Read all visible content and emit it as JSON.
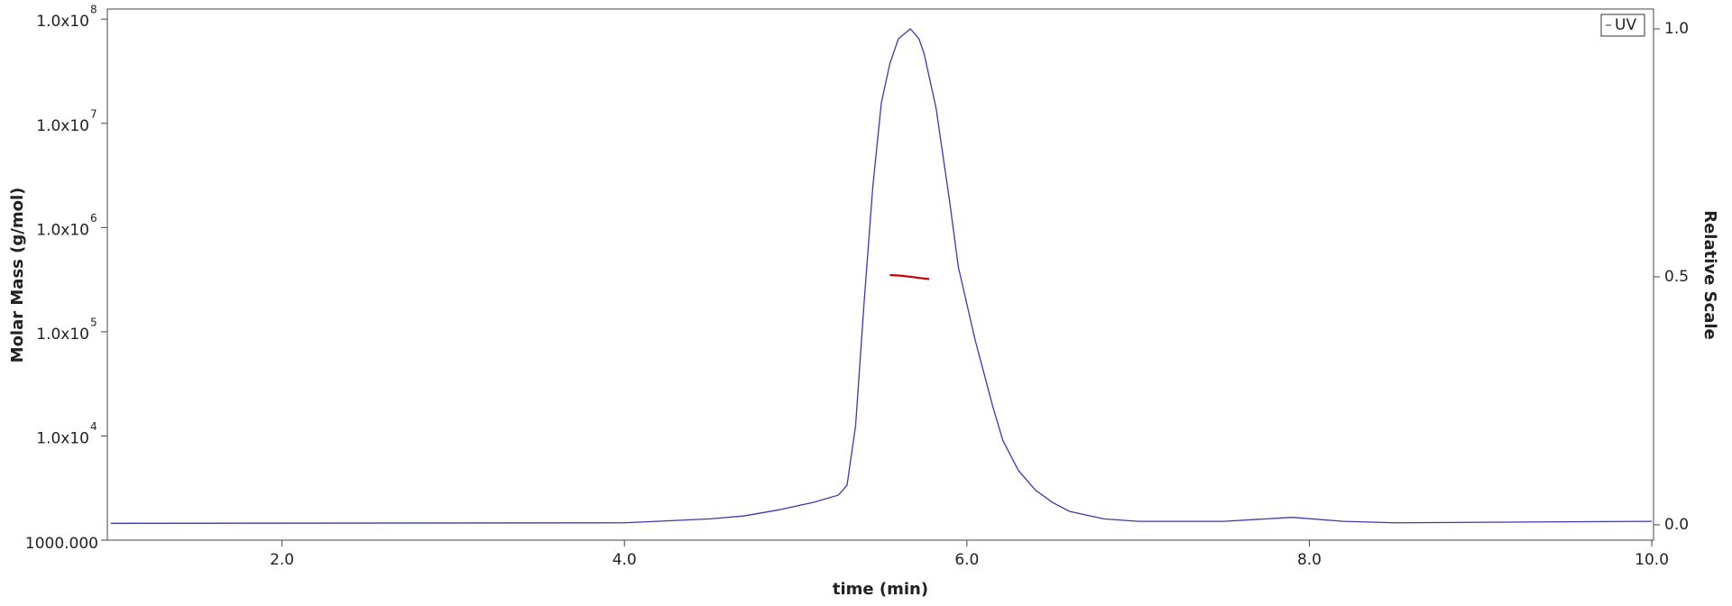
{
  "chart_data": {
    "type": "line",
    "xlabel": "time (min)",
    "ylabel": "Molar Mass (g/mol)",
    "y2label": "Relative Scale",
    "xlim": [
      0.98,
      10.01
    ],
    "xticks": [
      {
        "value": 2,
        "label": "2.0"
      },
      {
        "value": 4,
        "label": "4.0"
      },
      {
        "value": 6,
        "label": "6.0"
      },
      {
        "value": 8,
        "label": "8.0"
      },
      {
        "value": 10,
        "label": "10.0"
      }
    ],
    "ylim": [
      1000,
      125000000
    ],
    "yscale": "log",
    "yticks": [
      {
        "value": 1000,
        "label": "1000.000"
      },
      {
        "value": 10000,
        "label": "1.0x10",
        "exponent": "4"
      },
      {
        "value": 100000,
        "label": "1.0x10",
        "exponent": "5"
      },
      {
        "value": 1000000,
        "label": "1.0x10",
        "exponent": "6"
      },
      {
        "value": 10000000,
        "label": "1.0x10",
        "exponent": "7"
      },
      {
        "value": 100000000,
        "label": "1.0x10",
        "exponent": "8"
      }
    ],
    "y2lim": [
      -0.031,
      1.04
    ],
    "y2ticks": [
      {
        "value": 0,
        "label": "0.0"
      },
      {
        "value": 0.5,
        "label": "0.5"
      },
      {
        "value": 1,
        "label": "1.0"
      }
    ],
    "legend": "upper right",
    "series": [
      {
        "name": "UV",
        "color": "#3a3ab0",
        "axis": "y2",
        "x": [
          1.0,
          4.0,
          4.5,
          4.7,
          4.9,
          5.1,
          5.25,
          5.3,
          5.35,
          5.4,
          5.45,
          5.5,
          5.55,
          5.6,
          5.67,
          5.72,
          5.75,
          5.82,
          5.9,
          5.95,
          6.05,
          6.15,
          6.21,
          6.3,
          6.4,
          6.5,
          6.6,
          6.8,
          7.0,
          7.5,
          7.9,
          8.2,
          8.5,
          10.0
        ],
        "values": [
          0.003,
          0.004,
          0.012,
          0.018,
          0.03,
          0.045,
          0.06,
          0.08,
          0.2,
          0.45,
          0.68,
          0.85,
          0.93,
          0.98,
          1.0,
          0.98,
          0.95,
          0.84,
          0.65,
          0.52,
          0.37,
          0.24,
          0.17,
          0.11,
          0.07,
          0.045,
          0.027,
          0.012,
          0.007,
          0.007,
          0.015,
          0.007,
          0.004,
          0.007
        ]
      },
      {
        "color": "#cc0000",
        "axis": "y",
        "x": [
          5.55,
          5.62,
          5.68,
          5.78
        ],
        "values": [
          350000,
          345000,
          335000,
          320000
        ]
      }
    ]
  }
}
